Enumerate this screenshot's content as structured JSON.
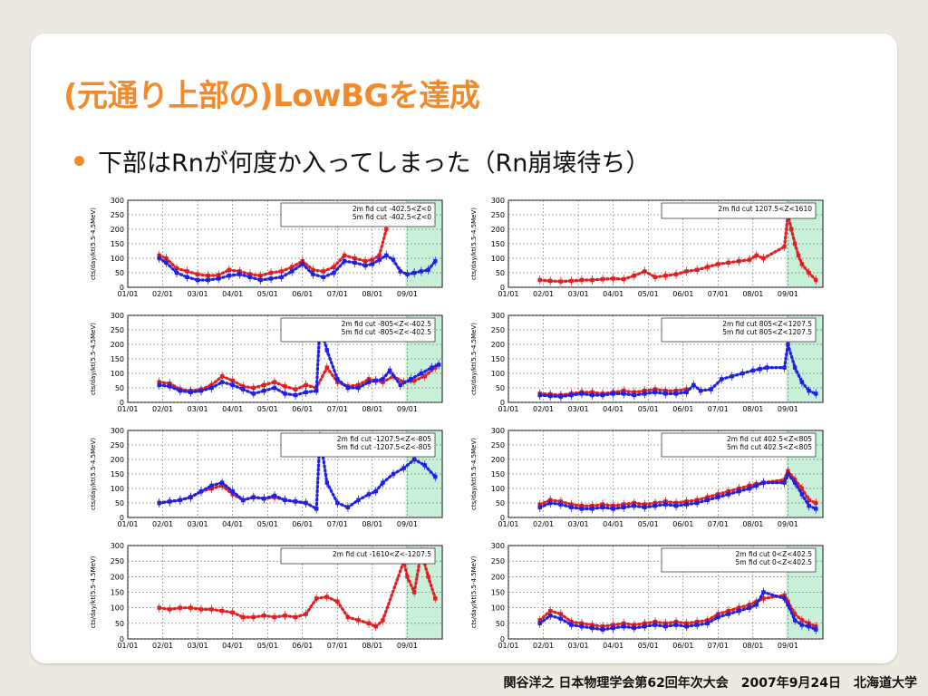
{
  "slide": {
    "title": "(元通り上部の)LowBGを達成",
    "bullet": "下部はRnが何度か入ってしまった（Rn崩壊待ち）",
    "footer": "関谷洋之 日本物理学会第62回年次大会　2007年9月24日　北海道大学"
  },
  "colors": {
    "accent": "#f08a2c",
    "series_2m": "#e02020",
    "series_5m": "#2020e0",
    "shade": "#c8efd8"
  },
  "chart_data": [
    {
      "type": "scatter",
      "ylabel": "cts/day/kt(5.5-4.5MeV)",
      "ylim": [
        0,
        300
      ],
      "yticks": [
        0,
        50,
        100,
        150,
        200,
        250,
        300
      ],
      "xticks": [
        "01/01",
        "02/01",
        "03/01",
        "04/01",
        "05/01",
        "06/01",
        "07/01",
        "08/01",
        "09/01"
      ],
      "legend": [
        "2m fid cut -402.5<Z<0",
        "5m fid cut -402.5<Z<0"
      ],
      "series": [
        {
          "name": "2m fid cut -402.5<Z<0",
          "color": "#e02020",
          "x": [
            0.9,
            1.1,
            1.4,
            1.7,
            2.0,
            2.3,
            2.6,
            2.9,
            3.2,
            3.5,
            3.8,
            4.1,
            4.4,
            4.7,
            5.0,
            5.3,
            5.6,
            5.9,
            6.2,
            6.5,
            6.8,
            7.0,
            7.2,
            7.4
          ],
          "y": [
            110,
            100,
            65,
            55,
            45,
            40,
            42,
            60,
            55,
            45,
            40,
            50,
            55,
            70,
            90,
            60,
            55,
            70,
            110,
            100,
            90,
            95,
            110,
            200
          ]
        },
        {
          "name": "5m fid cut -402.5<Z<0",
          "color": "#2020e0",
          "x": [
            0.9,
            1.1,
            1.4,
            1.7,
            2.0,
            2.3,
            2.6,
            2.9,
            3.2,
            3.5,
            3.8,
            4.1,
            4.4,
            4.7,
            5.0,
            5.3,
            5.6,
            5.9,
            6.2,
            6.5,
            6.8,
            7.0,
            7.2,
            7.4,
            7.6,
            7.8,
            8.0,
            8.2,
            8.4,
            8.6,
            8.8
          ],
          "y": [
            100,
            85,
            50,
            35,
            25,
            25,
            30,
            40,
            45,
            35,
            25,
            30,
            35,
            55,
            80,
            45,
            35,
            50,
            90,
            85,
            75,
            80,
            95,
            110,
            95,
            55,
            45,
            50,
            55,
            60,
            90
          ]
        }
      ]
    },
    {
      "type": "scatter",
      "ylabel": "cts/day/kt(5.5-4.5MeV)",
      "ylim": [
        0,
        300
      ],
      "yticks": [
        0,
        50,
        100,
        150,
        200,
        250,
        300
      ],
      "xticks": [
        "01/01",
        "02/01",
        "03/01",
        "04/01",
        "05/01",
        "06/01",
        "07/01",
        "08/01",
        "09/01"
      ],
      "legend": [
        "2m fid cut 1207.5<Z<1610"
      ],
      "series": [
        {
          "name": "2m fid cut 1207.5<Z<1610",
          "color": "#e02020",
          "x": [
            0.9,
            1.2,
            1.5,
            1.8,
            2.1,
            2.4,
            2.7,
            3.0,
            3.3,
            3.6,
            3.9,
            4.2,
            4.5,
            4.8,
            5.1,
            5.4,
            5.7,
            6.0,
            6.3,
            6.6,
            6.9,
            7.1,
            7.3,
            7.9,
            8.0,
            8.1,
            8.2,
            8.3,
            8.4,
            8.6,
            8.8
          ],
          "y": [
            25,
            22,
            20,
            22,
            25,
            25,
            28,
            30,
            28,
            40,
            55,
            35,
            40,
            45,
            55,
            60,
            70,
            80,
            85,
            90,
            95,
            110,
            100,
            140,
            250,
            200,
            150,
            110,
            80,
            50,
            25
          ]
        }
      ]
    },
    {
      "type": "scatter",
      "ylabel": "cts/day/kt(5.5-4.5MeV)",
      "ylim": [
        0,
        300
      ],
      "yticks": [
        0,
        50,
        100,
        150,
        200,
        250,
        300
      ],
      "xticks": [
        "01/01",
        "02/01",
        "03/01",
        "04/01",
        "05/01",
        "06/01",
        "07/01",
        "08/01",
        "09/01"
      ],
      "legend": [
        "2m fid cut -805<Z<-402.5",
        "5m fid cut -805<Z<-402.5"
      ],
      "series": [
        {
          "name": "2m fid cut -805<Z<-402.5",
          "color": "#e02020",
          "x": [
            0.9,
            1.2,
            1.5,
            1.8,
            2.1,
            2.4,
            2.7,
            3.0,
            3.3,
            3.6,
            3.9,
            4.2,
            4.5,
            4.8,
            5.1,
            5.4,
            5.7,
            6.0,
            6.3,
            6.6,
            6.9,
            7.1,
            7.3,
            7.6,
            7.9,
            8.2,
            8.5,
            8.8
          ],
          "y": [
            70,
            65,
            45,
            40,
            45,
            60,
            90,
            75,
            55,
            50,
            60,
            70,
            55,
            45,
            60,
            50,
            120,
            70,
            55,
            60,
            80,
            75,
            70,
            90,
            70,
            75,
            90,
            120
          ]
        },
        {
          "name": "5m fid cut -805<Z<-402.5",
          "color": "#2020e0",
          "x": [
            0.9,
            1.2,
            1.5,
            1.8,
            2.1,
            2.4,
            2.7,
            3.0,
            3.3,
            3.6,
            3.9,
            4.2,
            4.5,
            4.8,
            5.1,
            5.4,
            5.5,
            5.7,
            6.0,
            6.3,
            6.6,
            6.9,
            7.1,
            7.3,
            7.5,
            7.8,
            8.1,
            8.4,
            8.7,
            8.9
          ],
          "y": [
            60,
            55,
            40,
            35,
            40,
            50,
            70,
            60,
            45,
            30,
            40,
            50,
            30,
            25,
            35,
            40,
            270,
            180,
            80,
            50,
            50,
            70,
            75,
            80,
            110,
            60,
            80,
            100,
            120,
            130
          ]
        }
      ]
    },
    {
      "type": "scatter",
      "ylabel": "cts/day/kt(5.5-4.5MeV)",
      "ylim": [
        0,
        300
      ],
      "yticks": [
        0,
        50,
        100,
        150,
        200,
        250,
        300
      ],
      "xticks": [
        "01/01",
        "02/01",
        "03/01",
        "04/01",
        "05/01",
        "06/01",
        "07/01",
        "08/01",
        "09/01"
      ],
      "legend": [
        "2m fid cut 805<Z<1207.5",
        "5m fid cut 805<Z<1207.5"
      ],
      "series": [
        {
          "name": "2m fid cut 805<Z<1207.5",
          "color": "#e02020",
          "x": [
            0.9,
            1.2,
            1.5,
            1.8,
            2.1,
            2.4,
            2.7,
            3.0,
            3.3,
            3.6,
            3.9,
            4.2,
            4.5,
            4.8,
            5.1
          ],
          "y": [
            30,
            28,
            25,
            30,
            35,
            35,
            30,
            35,
            40,
            35,
            40,
            45,
            40,
            40,
            45
          ]
        },
        {
          "name": "5m fid cut 805<Z<1207.5",
          "color": "#2020e0",
          "x": [
            0.9,
            1.2,
            1.5,
            1.8,
            2.1,
            2.4,
            2.7,
            3.0,
            3.3,
            3.6,
            3.9,
            4.2,
            4.5,
            4.8,
            5.1,
            5.3,
            5.5,
            5.8,
            6.1,
            6.4,
            6.7,
            7.0,
            7.2,
            7.4,
            7.9,
            8.0,
            8.2,
            8.4,
            8.6,
            8.8
          ],
          "y": [
            25,
            22,
            20,
            25,
            30,
            25,
            25,
            30,
            30,
            25,
            30,
            35,
            30,
            30,
            35,
            60,
            40,
            45,
            80,
            90,
            100,
            110,
            115,
            120,
            120,
            200,
            120,
            70,
            40,
            30
          ]
        }
      ]
    },
    {
      "type": "scatter",
      "ylabel": "cts/day/kt(5.5-4.5MeV)",
      "ylim": [
        0,
        300
      ],
      "yticks": [
        0,
        50,
        100,
        150,
        200,
        250,
        300
      ],
      "xticks": [
        "01/01",
        "02/01",
        "03/01",
        "04/01",
        "05/01",
        "06/01",
        "07/01",
        "08/01",
        "09/01"
      ],
      "legend": [
        "2m fid cut -1207.5<Z<-805",
        "5m fid cut -1207.5<Z<-805"
      ],
      "series": [
        {
          "name": "2m fid cut -1207.5<Z<-805",
          "color": "#e02020",
          "x": [
            0.9,
            1.2,
            1.5,
            1.8,
            2.1,
            2.4,
            2.7,
            3.0,
            3.3,
            3.6,
            3.9,
            4.2,
            4.5,
            4.8,
            5.1
          ],
          "y": [
            50,
            55,
            60,
            70,
            90,
            100,
            110,
            80,
            60,
            70,
            65,
            70,
            60,
            55,
            50
          ]
        },
        {
          "name": "5m fid cut -1207.5<Z<-805",
          "color": "#2020e0",
          "x": [
            0.9,
            1.2,
            1.5,
            1.8,
            2.1,
            2.4,
            2.7,
            3.0,
            3.3,
            3.6,
            3.9,
            4.2,
            4.5,
            4.8,
            5.1,
            5.4,
            5.5,
            5.7,
            6.0,
            6.3,
            6.6,
            6.9,
            7.1,
            7.3,
            7.6,
            7.9,
            8.2,
            8.5,
            8.8
          ],
          "y": [
            50,
            55,
            60,
            70,
            90,
            110,
            120,
            90,
            60,
            70,
            65,
            75,
            60,
            55,
            50,
            30,
            280,
            120,
            50,
            35,
            60,
            80,
            90,
            120,
            150,
            170,
            200,
            180,
            140
          ]
        }
      ]
    },
    {
      "type": "scatter",
      "ylabel": "cts/day/kt(5.5-4.5MeV)",
      "ylim": [
        0,
        300
      ],
      "yticks": [
        0,
        50,
        100,
        150,
        200,
        250,
        300
      ],
      "xticks": [
        "01/01",
        "02/01",
        "03/01",
        "04/01",
        "05/01",
        "06/01",
        "07/01",
        "08/01",
        "09/01"
      ],
      "legend": [
        "2m fid cut 402.5<Z<805",
        "5m fid cut 402.5<Z<805"
      ],
      "series": [
        {
          "name": "2m fid cut 402.5<Z<805",
          "color": "#e02020",
          "x": [
            0.9,
            1.2,
            1.5,
            1.8,
            2.1,
            2.4,
            2.7,
            3.0,
            3.3,
            3.6,
            3.9,
            4.2,
            4.5,
            4.8,
            5.1,
            5.4,
            5.7,
            6.0,
            6.3,
            6.6,
            6.9,
            7.1,
            7.3,
            7.9,
            8.0,
            8.2,
            8.4,
            8.6,
            8.8
          ],
          "y": [
            45,
            60,
            55,
            45,
            40,
            40,
            45,
            40,
            45,
            50,
            45,
            50,
            55,
            50,
            55,
            60,
            70,
            80,
            90,
            100,
            110,
            115,
            120,
            130,
            160,
            130,
            100,
            60,
            50
          ]
        },
        {
          "name": "5m fid cut 402.5<Z<805",
          "color": "#2020e0",
          "x": [
            0.9,
            1.2,
            1.5,
            1.8,
            2.1,
            2.4,
            2.7,
            3.0,
            3.3,
            3.6,
            3.9,
            4.2,
            4.5,
            4.8,
            5.1,
            5.4,
            5.7,
            6.0,
            6.3,
            6.6,
            6.9,
            7.1,
            7.3,
            7.9,
            8.0,
            8.2,
            8.4,
            8.6,
            8.8
          ],
          "y": [
            35,
            50,
            45,
            35,
            30,
            30,
            35,
            30,
            35,
            40,
            35,
            40,
            45,
            40,
            45,
            50,
            60,
            70,
            80,
            90,
            100,
            110,
            120,
            120,
            150,
            120,
            80,
            40,
            30
          ]
        }
      ]
    },
    {
      "type": "scatter",
      "ylabel": "cts/day/kt(5.5-4.5MeV)",
      "ylim": [
        0,
        300
      ],
      "yticks": [
        0,
        50,
        100,
        150,
        200,
        250,
        300
      ],
      "xticks": [
        "01/01",
        "02/01",
        "03/01",
        "04/01",
        "05/01",
        "06/01",
        "07/01",
        "08/01",
        "09/01"
      ],
      "legend": [
        "2m fid cut -1610<Z<-1207.5"
      ],
      "series": [
        {
          "name": "2m fid cut -1610<Z<-1207.5",
          "color": "#e02020",
          "x": [
            0.9,
            1.2,
            1.5,
            1.8,
            2.1,
            2.4,
            2.7,
            3.0,
            3.3,
            3.6,
            3.9,
            4.2,
            4.5,
            4.8,
            5.1,
            5.4,
            5.7,
            6.0,
            6.3,
            6.6,
            6.9,
            7.1,
            7.3,
            7.9,
            8.0,
            8.2,
            8.4,
            8.6,
            8.8
          ],
          "y": [
            100,
            95,
            100,
            100,
            95,
            95,
            90,
            85,
            70,
            70,
            75,
            70,
            75,
            70,
            80,
            130,
            135,
            120,
            70,
            60,
            50,
            40,
            60,
            250,
            200,
            150,
            280,
            200,
            130
          ]
        }
      ]
    },
    {
      "type": "scatter",
      "ylabel": "cts/day/kt(5.5-4.5MeV)",
      "ylim": [
        0,
        300
      ],
      "yticks": [
        0,
        50,
        100,
        150,
        200,
        250,
        300
      ],
      "xticks": [
        "01/01",
        "02/01",
        "03/01",
        "04/01",
        "05/01",
        "06/01",
        "07/01",
        "08/01",
        "09/01"
      ],
      "legend": [
        "2m fid cut 0<Z<402.5",
        "5m fid cut 0<Z<402.5"
      ],
      "series": [
        {
          "name": "2m fid cut 0<Z<402.5",
          "color": "#e02020",
          "x": [
            0.9,
            1.2,
            1.5,
            1.8,
            2.1,
            2.4,
            2.7,
            3.0,
            3.3,
            3.6,
            3.9,
            4.2,
            4.5,
            4.8,
            5.1,
            5.4,
            5.7,
            6.0,
            6.3,
            6.6,
            6.9,
            7.1,
            7.3,
            7.9,
            8.0,
            8.2,
            8.4,
            8.6,
            8.8
          ],
          "y": [
            60,
            90,
            80,
            55,
            50,
            45,
            40,
            45,
            50,
            45,
            50,
            55,
            50,
            55,
            50,
            55,
            60,
            80,
            90,
            100,
            110,
            120,
            130,
            140,
            120,
            80,
            60,
            50,
            40
          ]
        },
        {
          "name": "5m fid cut 0<Z<402.5",
          "color": "#2020e0",
          "x": [
            0.9,
            1.2,
            1.5,
            1.8,
            2.1,
            2.4,
            2.7,
            3.0,
            3.3,
            3.6,
            3.9,
            4.2,
            4.5,
            4.8,
            5.1,
            5.4,
            5.7,
            6.0,
            6.3,
            6.6,
            6.9,
            7.1,
            7.3,
            7.9,
            8.0,
            8.2,
            8.4,
            8.6,
            8.8
          ],
          "y": [
            50,
            75,
            65,
            45,
            40,
            35,
            30,
            35,
            40,
            35,
            40,
            45,
            40,
            45,
            40,
            45,
            50,
            70,
            80,
            90,
            100,
            110,
            150,
            130,
            110,
            60,
            45,
            40,
            30
          ]
        }
      ]
    }
  ]
}
